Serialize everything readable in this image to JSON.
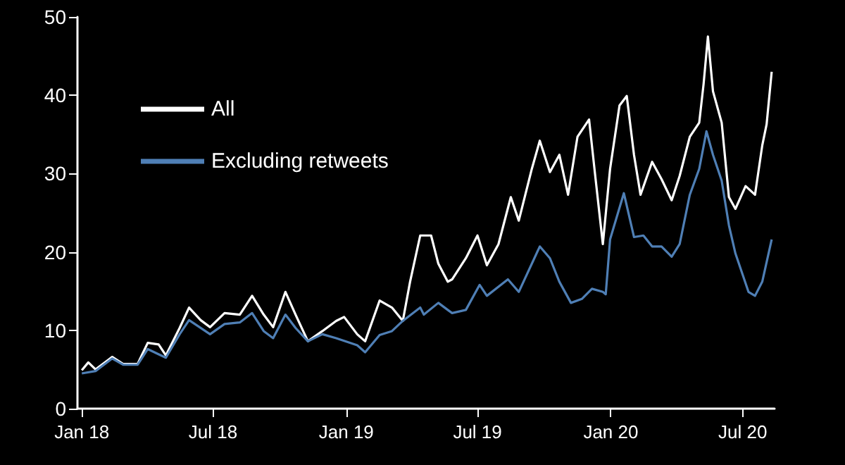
{
  "chart_data": {
    "type": "line",
    "xlim": [
      "2017-12-26",
      "2020-08-14"
    ],
    "ylim": [
      0,
      50
    ],
    "yticks": [
      0,
      10,
      20,
      30,
      40,
      50
    ],
    "xticks": [
      {
        "value": "2018-01-01",
        "label": "Jan 18"
      },
      {
        "value": "2018-07-01",
        "label": "Jul 18"
      },
      {
        "value": "2019-01-01",
        "label": "Jan 19"
      },
      {
        "value": "2019-07-01",
        "label": "Jul 19"
      },
      {
        "value": "2020-01-01",
        "label": "Jan 20"
      },
      {
        "value": "2020-07-01",
        "label": "Jul 20"
      }
    ],
    "grid": false,
    "legend": "top left",
    "marker": "none",
    "line_style": "solid",
    "series": [
      {
        "name": "All",
        "color": "#ffffff",
        "x": [
          "2018-01-01",
          "2018-01-10",
          "2018-01-20",
          "2018-02-12",
          "2018-02-27",
          "2018-03-19",
          "2018-04-02",
          "2018-04-17",
          "2018-04-27",
          "2018-05-16",
          "2018-05-29",
          "2018-06-14",
          "2018-06-27",
          "2018-07-17",
          "2018-08-07",
          "2018-08-24",
          "2018-09-09",
          "2018-09-22",
          "2018-10-09",
          "2018-10-23",
          "2018-11-09",
          "2018-11-29",
          "2018-12-18",
          "2018-12-29",
          "2019-01-16",
          "2019-01-27",
          "2019-02-16",
          "2019-03-05",
          "2019-03-20",
          "2019-03-30",
          "2019-04-13",
          "2019-04-28",
          "2019-05-08",
          "2019-05-21",
          "2019-05-27",
          "2019-06-15",
          "2019-07-01",
          "2019-07-14",
          "2019-07-30",
          "2019-08-16",
          "2019-08-27",
          "2019-09-14",
          "2019-09-25",
          "2019-10-09",
          "2019-10-22",
          "2019-11-03",
          "2019-11-16",
          "2019-12-02",
          "2019-12-11",
          "2019-12-21",
          "2019-12-31",
          "2020-01-13",
          "2020-01-23",
          "2020-02-02",
          "2020-02-11",
          "2020-02-27",
          "2020-03-11",
          "2020-03-25",
          "2020-04-05",
          "2020-04-19",
          "2020-05-02",
          "2020-05-08",
          "2020-05-14",
          "2020-05-21",
          "2020-06-02",
          "2020-06-12",
          "2020-06-21",
          "2020-07-05",
          "2020-07-18",
          "2020-07-28",
          "2020-08-03",
          "2020-08-10"
        ],
        "values": [
          4.9,
          5.9,
          5.0,
          6.6,
          5.7,
          5.7,
          8.4,
          8.2,
          6.8,
          10.3,
          12.9,
          11.3,
          10.4,
          12.2,
          12.0,
          14.4,
          12.0,
          10.4,
          14.9,
          12.0,
          8.6,
          9.9,
          11.2,
          11.7,
          9.5,
          8.6,
          13.8,
          12.9,
          11.2,
          16.2,
          22.1,
          22.1,
          18.5,
          16.2,
          16.5,
          19.2,
          22.1,
          18.3,
          21.0,
          27.0,
          24.0,
          30.6,
          34.2,
          30.2,
          32.4,
          27.3,
          34.7,
          36.9,
          29.3,
          21.0,
          30.6,
          38.7,
          39.9,
          32.4,
          27.3,
          31.5,
          29.3,
          26.6,
          29.7,
          34.7,
          36.5,
          41.4,
          47.5,
          40.5,
          36.5,
          27.0,
          25.5,
          28.4,
          27.3,
          33.6,
          36.3,
          43.0
        ]
      },
      {
        "name": "Excluding retweets",
        "color": "#4f7fb5",
        "x": [
          "2018-01-01",
          "2018-01-20",
          "2018-02-12",
          "2018-02-27",
          "2018-03-19",
          "2018-04-02",
          "2018-04-27",
          "2018-05-16",
          "2018-05-29",
          "2018-06-27",
          "2018-07-17",
          "2018-08-07",
          "2018-08-24",
          "2018-09-09",
          "2018-09-22",
          "2018-10-09",
          "2018-10-23",
          "2018-11-09",
          "2018-11-29",
          "2018-12-18",
          "2019-01-16",
          "2019-01-27",
          "2019-02-16",
          "2019-03-05",
          "2019-03-20",
          "2019-04-13",
          "2019-04-18",
          "2019-05-08",
          "2019-05-21",
          "2019-05-27",
          "2019-06-15",
          "2019-07-04",
          "2019-07-14",
          "2019-08-12",
          "2019-08-27",
          "2019-09-25",
          "2019-10-09",
          "2019-10-22",
          "2019-11-07",
          "2019-11-22",
          "2019-12-06",
          "2019-12-21",
          "2019-12-25",
          "2019-12-31",
          "2020-01-19",
          "2020-02-02",
          "2020-02-15",
          "2020-02-27",
          "2020-03-11",
          "2020-03-25",
          "2020-04-05",
          "2020-04-19",
          "2020-05-02",
          "2020-05-12",
          "2020-05-21",
          "2020-06-02",
          "2020-06-12",
          "2020-06-21",
          "2020-07-09",
          "2020-07-18",
          "2020-07-28",
          "2020-08-10"
        ],
        "values": [
          4.5,
          4.8,
          6.4,
          5.6,
          5.6,
          7.6,
          6.5,
          9.5,
          11.3,
          9.5,
          10.8,
          11.0,
          12.2,
          9.9,
          9.0,
          12.0,
          10.3,
          8.6,
          9.5,
          9.0,
          8.1,
          7.2,
          9.4,
          9.9,
          11.2,
          12.9,
          12.0,
          13.5,
          12.6,
          12.2,
          12.6,
          15.8,
          14.4,
          16.5,
          14.9,
          20.7,
          19.2,
          16.2,
          13.5,
          14.0,
          15.3,
          14.9,
          14.6,
          21.6,
          27.5,
          21.9,
          22.1,
          20.7,
          20.7,
          19.4,
          21.0,
          27.3,
          30.6,
          35.4,
          32.4,
          29.1,
          23.4,
          19.8,
          14.9,
          14.4,
          16.2,
          21.6
        ]
      }
    ]
  }
}
